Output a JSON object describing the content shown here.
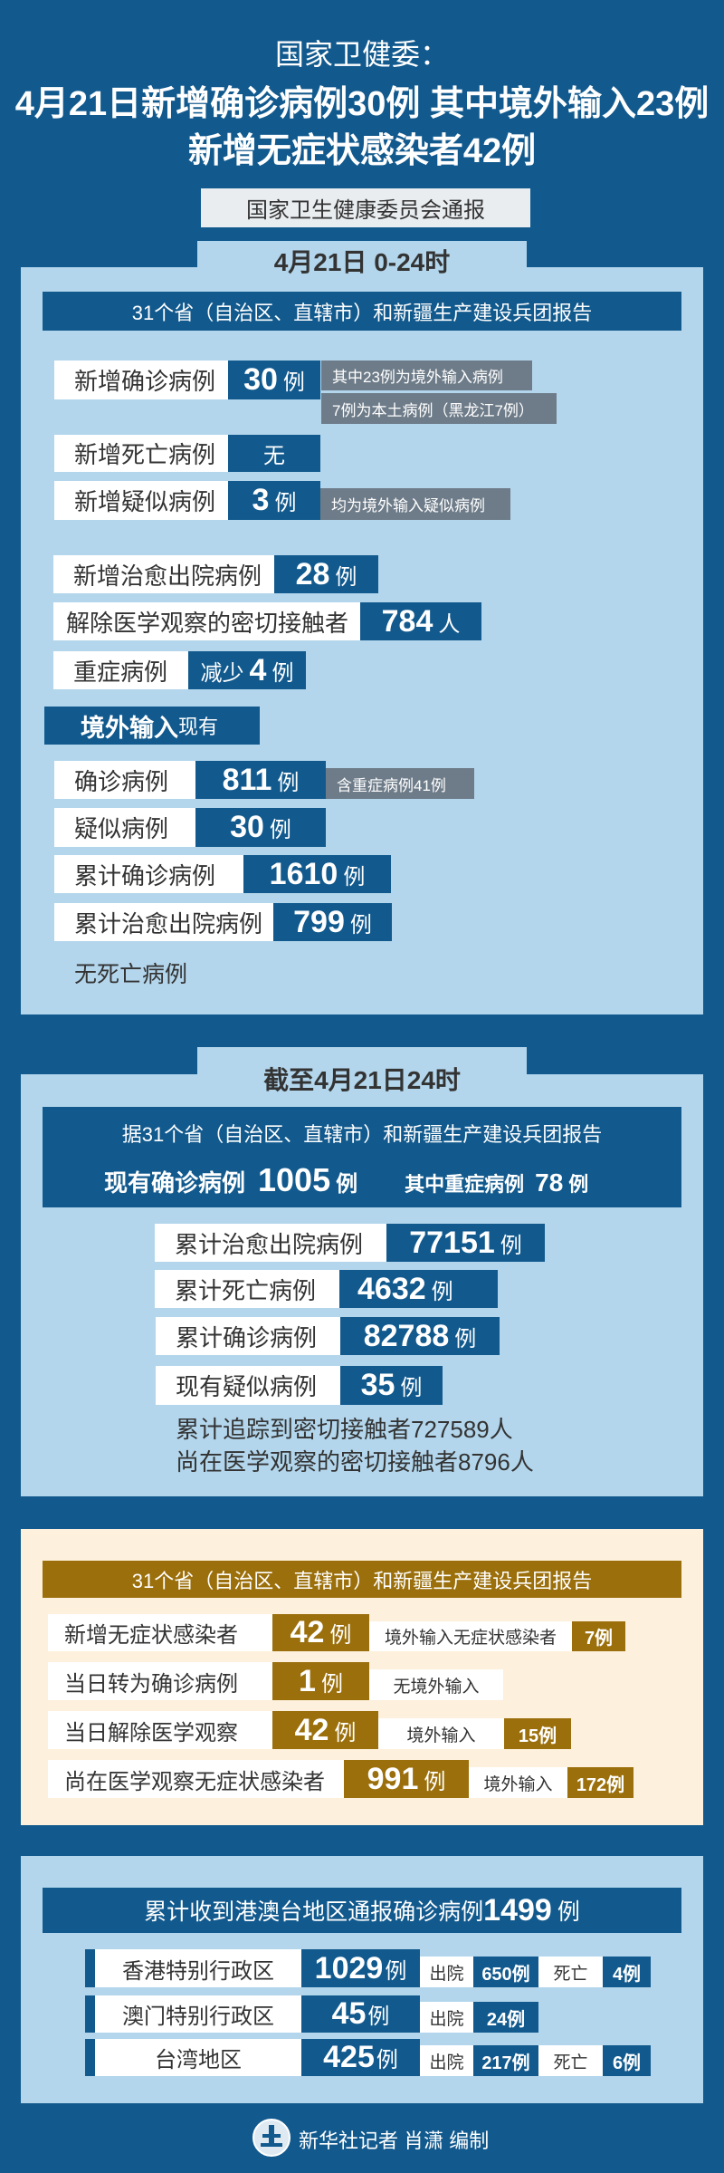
{
  "colors": {
    "background": "#125a8e",
    "panel": "#b3d6ec",
    "note": "#6e7c89",
    "gold": "#9b6f0b",
    "cream": "#fdf0dc"
  },
  "header": {
    "agency": "国家卫健委：",
    "headline1": "4月21日新增确诊病例30例 其中境外输入23例",
    "headline2": "新增无症状感染者42例",
    "source": "国家卫生健康委员会通报"
  },
  "daily": {
    "period": "4月21日 0-24时",
    "banner": "31个省（自治区、直辖市）和新疆生产建设兵团报告",
    "new_confirmed": {
      "label": "新增确诊病例",
      "value": "30",
      "unit": "例",
      "note1": "其中23例为境外输入病例",
      "note2": "7例为本土病例（黑龙江7例）"
    },
    "new_deaths": {
      "label": "新增死亡病例",
      "value": "无"
    },
    "new_suspected": {
      "label": "新增疑似病例",
      "value": "3",
      "unit": "例",
      "note": "均为境外输入疑似病例"
    },
    "new_recovered": {
      "label": "新增治愈出院病例",
      "value": "28",
      "unit": "例"
    },
    "released_contacts": {
      "label": "解除医学观察的密切接触者",
      "value": "784",
      "unit": "人"
    },
    "severe": {
      "label": "重症病例",
      "prefix": "减少",
      "value": "4",
      "unit": "例"
    },
    "imported_header": {
      "bold": "境外输入",
      "suffix": "现有"
    },
    "imported_confirmed": {
      "label": "确诊病例",
      "value": "811",
      "unit": "例",
      "note": "含重症病例41例"
    },
    "imported_suspected": {
      "label": "疑似病例",
      "value": "30",
      "unit": "例"
    },
    "imported_total": {
      "label": "累计确诊病例",
      "value": "1610",
      "unit": "例"
    },
    "imported_recovered": {
      "label": "累计治愈出院病例",
      "value": "799",
      "unit": "例"
    },
    "imported_no_deaths": "无死亡病例"
  },
  "cumulative": {
    "period": "截至4月21日24时",
    "banner": "据31个省（自治区、直辖市）和新疆生产建设兵团报告",
    "current_label": "现有确诊病例",
    "current_value": "1005",
    "current_unit": "例",
    "severe_label": "其中重症病例",
    "severe_value": "78",
    "severe_unit": "例",
    "rows": [
      {
        "label": "累计治愈出院病例",
        "value": "77151",
        "unit": "例"
      },
      {
        "label": "累计死亡病例",
        "value": "4632",
        "unit": "例"
      },
      {
        "label": "累计确诊病例",
        "value": "82788",
        "unit": "例"
      },
      {
        "label": "现有疑似病例",
        "value": "35",
        "unit": "例"
      }
    ],
    "contacts_traced": "累计追踪到密切接触者727589人",
    "contacts_observed": "尚在医学观察的密切接触者8796人"
  },
  "asymptomatic": {
    "banner": "31个省（自治区、直辖市）和新疆生产建设兵团报告",
    "rows": [
      {
        "label": "新增无症状感染者",
        "value": "42",
        "unit": "例",
        "note": "境外输入无症状感染者",
        "note_value": "7例"
      },
      {
        "label": "当日转为确诊病例",
        "value": "1",
        "unit": "例",
        "note": "无境外输入"
      },
      {
        "label": "当日解除医学观察",
        "value": "42",
        "unit": "例",
        "note": "境外输入",
        "note_value": "15例"
      },
      {
        "label": "尚在医学观察无症状感染者",
        "value": "991",
        "unit": "例",
        "note": "境外输入",
        "note_value": "172例"
      }
    ]
  },
  "hmt": {
    "banner_text": "累计收到港澳台地区通报确诊病例",
    "banner_value": "1499",
    "banner_unit": "例",
    "rows": [
      {
        "region": "香港特别行政区",
        "value": "1029",
        "unit": "例",
        "discharged_label": "出院",
        "discharged": "650例",
        "deaths_label": "死亡",
        "deaths": "4例"
      },
      {
        "region": "澳门特别行政区",
        "value": "45",
        "unit": "例",
        "discharged_label": "出院",
        "discharged": "24例"
      },
      {
        "region": "台湾地区",
        "value": "425",
        "unit": "例",
        "discharged_label": "出院",
        "discharged": "217例",
        "deaths_label": "死亡",
        "deaths": "6例"
      }
    ]
  },
  "footer": {
    "credit": "新华社记者 肖潇 编制",
    "logo_text": "XINHUA"
  }
}
